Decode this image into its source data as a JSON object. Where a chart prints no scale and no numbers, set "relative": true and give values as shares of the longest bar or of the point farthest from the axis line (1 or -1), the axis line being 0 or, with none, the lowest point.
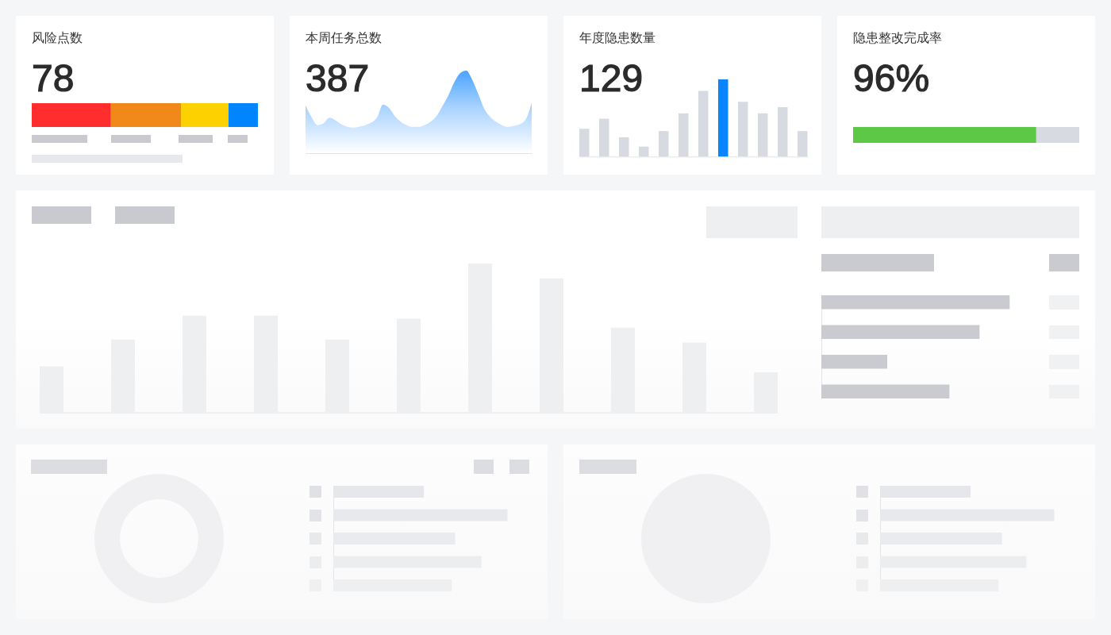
{
  "chart_data": [
    {
      "type": "other",
      "title": "风险点数",
      "subtitle": "78"
    },
    {
      "type": "bar",
      "orientation": "horizontal",
      "stacked": true,
      "relative": true,
      "categories": [
        null
      ],
      "series": [
        {
          "color": "#ff2d2d",
          "values": [
            0.35
          ]
        },
        {
          "color": "#f0891a",
          "values": [
            0.31
          ]
        },
        {
          "color": "#fdd000",
          "values": [
            0.21
          ]
        },
        {
          "color": "#0085ff",
          "values": [
            0.13
          ]
        }
      ]
    },
    {
      "type": "other",
      "title": "本周任务总数",
      "subtitle": "387"
    },
    {
      "type": "area",
      "relative": true,
      "categories": [
        null,
        null,
        null,
        null,
        null,
        null,
        null,
        null,
        null,
        null,
        null,
        null,
        null,
        null,
        null,
        null,
        null,
        null,
        null,
        null,
        null,
        null,
        null,
        null,
        null,
        null,
        null,
        null,
        null,
        null,
        null,
        null,
        null,
        null,
        null,
        null,
        null,
        null,
        null
      ],
      "color": "#4aa3ff",
      "values": [
        0.58,
        0.44,
        0.34,
        0.36,
        0.43,
        0.4,
        0.35,
        0.32,
        0.31,
        0.32,
        0.34,
        0.37,
        0.43,
        0.59,
        0.55,
        0.45,
        0.38,
        0.34,
        0.32,
        0.32,
        0.34,
        0.38,
        0.45,
        0.57,
        0.7,
        0.86,
        0.97,
        1,
        0.89,
        0.72,
        0.54,
        0.44,
        0.38,
        0.34,
        0.32,
        0.33,
        0.35,
        0.41,
        0.61
      ]
    },
    {
      "type": "other",
      "title": "年度隐患数量",
      "subtitle": "129"
    },
    {
      "type": "bar",
      "relative": true,
      "categories": [
        null,
        null,
        null,
        null,
        null,
        null,
        null,
        null,
        null,
        null,
        null,
        null
      ],
      "values": [
        0.36,
        0.49,
        0.25,
        0.13,
        0.33,
        0.56,
        0.85,
        1,
        0.71,
        0.56,
        0.64,
        0.33
      ],
      "colors": [
        "#d8dae2",
        "#d8dae2",
        "#d8dae2",
        "#d8dae2",
        "#d8dae2",
        "#d8dae2",
        "#d8dae2",
        "#0a84ff",
        "#d8dae2",
        "#d8dae2",
        "#d8dae2",
        "#d8dae2"
      ]
    },
    {
      "type": "other",
      "title": "隐患整改完成率",
      "subtitle": "96%"
    },
    {
      "type": "bar",
      "orientation": "horizontal",
      "stacked": true,
      "relative": true,
      "categories": [
        null
      ],
      "series": [
        {
          "color": "#5cc845",
          "values": [
            0.81
          ]
        },
        {
          "color": "#d8dae2",
          "values": [
            0.19
          ]
        }
      ]
    },
    {
      "type": "bar",
      "relative": true,
      "categories": [
        null,
        null,
        null,
        null,
        null,
        null,
        null,
        null,
        null,
        null,
        null
      ],
      "color": "#eeeff1",
      "values": [
        0.31,
        0.49,
        0.65,
        0.65,
        0.49,
        0.63,
        1,
        0.9,
        0.57,
        0.47,
        0.27
      ]
    },
    {
      "type": "bar",
      "orientation": "horizontal",
      "relative": true,
      "categories": [
        null,
        null,
        null,
        null
      ],
      "color": "#cacbd0",
      "values": [
        1,
        0.84,
        0.35,
        0.68
      ]
    },
    {
      "type": "donut",
      "categories": [
        null
      ],
      "values": [
        100
      ],
      "colors": [
        "#f0f0f2"
      ]
    },
    {
      "type": "bar",
      "orientation": "horizontal",
      "relative": true,
      "categories": [
        null,
        null,
        null,
        null,
        null
      ],
      "values": [
        0.52,
        1,
        0.7,
        0.85,
        0.68
      ],
      "colors": [
        "#e6e7ea",
        "#e8e9ec",
        "#eaebee",
        "#ecedef",
        "#eeeff1"
      ]
    },
    {
      "type": "pie",
      "categories": [
        null
      ],
      "values": [
        100
      ],
      "colors": [
        "#f0f0f2"
      ]
    },
    {
      "type": "bar",
      "orientation": "horizontal",
      "relative": true,
      "categories": [
        null,
        null,
        null,
        null,
        null
      ],
      "values": [
        0.52,
        1,
        0.7,
        0.84,
        0.68
      ],
      "colors": [
        "#e6e7ea",
        "#e8e9ec",
        "#eaebee",
        "#ecedef",
        "#eeeff1"
      ]
    }
  ]
}
